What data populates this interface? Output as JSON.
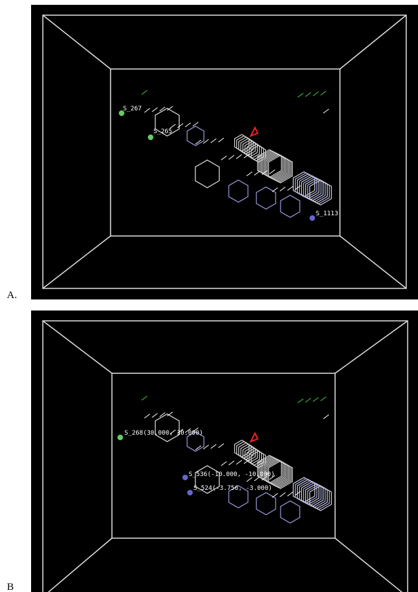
{
  "panels": [
    {
      "label": "A.",
      "atom_labels": [
        "S_267",
        "S_265",
        "S_1113"
      ]
    },
    {
      "label": "B",
      "atom_labels": [
        "S_268(30.000, 30.000)",
        "S_536(-10.000, -10.000)",
        "S_524(-3.756, -3.000)"
      ]
    }
  ]
}
